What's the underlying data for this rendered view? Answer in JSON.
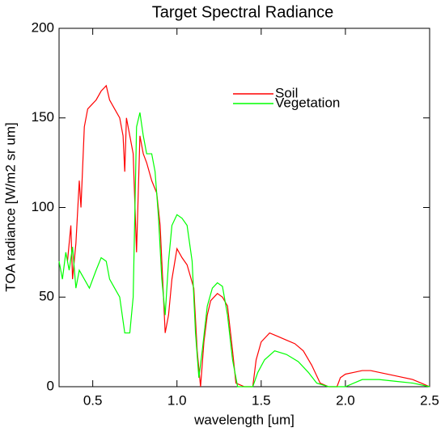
{
  "chart_data": {
    "type": "line",
    "title": "Target Spectral Radiance",
    "xlabel": "wavelength [um]",
    "ylabel": "TOA radiance [W/m2 sr um]",
    "xlim": [
      0.3,
      2.5
    ],
    "ylim": [
      0,
      200
    ],
    "xticks": [
      0.5,
      {
        "value": 1.0,
        "label": "1.0"
      },
      1.5,
      {
        "value": 2.0,
        "label": "2.0"
      },
      2.5
    ],
    "yticks": [
      0,
      50,
      100,
      150,
      200
    ],
    "series": [
      {
        "name": "Soil",
        "color": "#ff0000",
        "x": [
          0.35,
          0.37,
          0.38,
          0.4,
          0.42,
          0.43,
          0.45,
          0.47,
          0.5,
          0.52,
          0.55,
          0.58,
          0.6,
          0.63,
          0.66,
          0.68,
          0.69,
          0.7,
          0.72,
          0.74,
          0.76,
          0.78,
          0.8,
          0.82,
          0.85,
          0.88,
          0.9,
          0.93,
          0.95,
          0.97,
          1.0,
          1.03,
          1.06,
          1.1,
          1.12,
          1.14,
          1.16,
          1.18,
          1.2,
          1.24,
          1.27,
          1.3,
          1.33,
          1.35,
          1.4,
          1.45,
          1.47,
          1.5,
          1.55,
          1.6,
          1.65,
          1.7,
          1.75,
          1.8,
          1.85,
          1.9,
          1.95,
          1.97,
          2.0,
          2.05,
          2.1,
          2.15,
          2.2,
          2.3,
          2.4,
          2.45,
          2.5
        ],
        "values": [
          70,
          90,
          60,
          80,
          115,
          100,
          145,
          155,
          158,
          160,
          165,
          168,
          160,
          155,
          150,
          140,
          120,
          150,
          140,
          130,
          75,
          140,
          130,
          125,
          115,
          108,
          90,
          30,
          40,
          60,
          77,
          72,
          68,
          55,
          20,
          0,
          25,
          40,
          48,
          52,
          50,
          45,
          20,
          2,
          0,
          0,
          15,
          25,
          30,
          28,
          26,
          24,
          20,
          12,
          2,
          0,
          0,
          5,
          7,
          8,
          9,
          9,
          8,
          6,
          4,
          2,
          0
        ]
      },
      {
        "name": "Vegetation",
        "color": "#00ff00",
        "x": [
          0.3,
          0.32,
          0.34,
          0.36,
          0.38,
          0.4,
          0.42,
          0.45,
          0.48,
          0.52,
          0.55,
          0.58,
          0.6,
          0.63,
          0.66,
          0.69,
          0.72,
          0.74,
          0.76,
          0.78,
          0.8,
          0.82,
          0.85,
          0.87,
          0.89,
          0.91,
          0.93,
          0.95,
          0.97,
          1.0,
          1.03,
          1.06,
          1.09,
          1.11,
          1.13,
          1.15,
          1.18,
          1.21,
          1.24,
          1.27,
          1.3,
          1.33,
          1.36,
          1.45,
          1.48,
          1.52,
          1.58,
          1.65,
          1.72,
          1.78,
          1.83,
          1.9,
          2.0,
          2.05,
          2.1,
          2.2,
          2.3,
          2.4,
          2.5
        ],
        "values": [
          70,
          60,
          75,
          65,
          78,
          55,
          65,
          60,
          55,
          65,
          72,
          70,
          60,
          55,
          50,
          30,
          30,
          50,
          145,
          153,
          140,
          130,
          130,
          120,
          95,
          60,
          40,
          70,
          90,
          96,
          94,
          90,
          70,
          30,
          5,
          20,
          45,
          55,
          58,
          56,
          40,
          15,
          0,
          0,
          8,
          15,
          20,
          18,
          14,
          8,
          2,
          0,
          0,
          2,
          4,
          4,
          3,
          2,
          0
        ]
      }
    ]
  }
}
